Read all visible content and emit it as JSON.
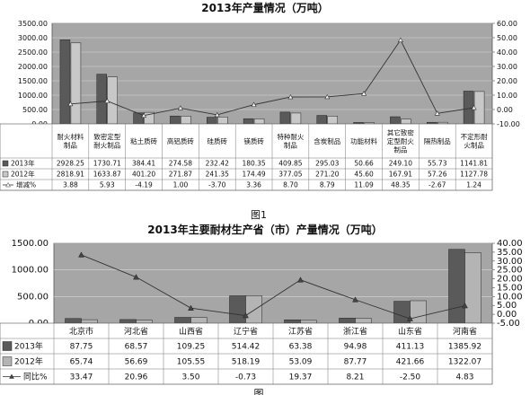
{
  "chart_data": [
    {
      "type": "bar",
      "title": "2013年产量情况（万吨）",
      "figure_label": "图1",
      "categories": [
        "耐火材料制品",
        "致密定型耐火制品",
        "粘土质砖",
        "高铝质砖",
        "硅质砖",
        "镁质砖",
        "特种耐火制品",
        "含炭制品",
        "功能材料",
        "其它致密定型耐火制品",
        "隔热制品",
        "不定形耐火制品"
      ],
      "series": [
        {
          "name": "2013年",
          "values": [
            2928.25,
            1730.71,
            384.41,
            274.58,
            232.42,
            180.35,
            409.85,
            295.03,
            50.66,
            249.1,
            55.73,
            1141.81
          ],
          "labels": [
            "2928.25",
            "1730.71",
            "384.41",
            "274.58",
            "232.42",
            "180.35",
            "409.85",
            "295.03",
            "50.66",
            "249.10",
            "55.73",
            "1141.81"
          ],
          "color": "#5a5a5a"
        },
        {
          "name": "2012年",
          "values": [
            2818.91,
            1633.87,
            401.2,
            271.87,
            241.35,
            174.49,
            377.05,
            271.2,
            45.6,
            167.91,
            57.26,
            1127.78
          ],
          "labels": [
            "2818.91",
            "1633.87",
            "401.20",
            "271.87",
            "241.35",
            "174.49",
            "377.05",
            "271.20",
            "45.60",
            "167.91",
            "57.26",
            "1127.78"
          ],
          "color": "#c8c8c8"
        },
        {
          "name": "增减%",
          "type": "line",
          "axis": "right",
          "values": [
            3.88,
            5.93,
            -4.19,
            1.0,
            -3.7,
            3.36,
            8.7,
            8.79,
            11.09,
            48.35,
            -2.67,
            1.24
          ],
          "labels": [
            "3.88",
            "5.93",
            "-4.19",
            "1.00",
            "-3.70",
            "3.36",
            "8.70",
            "8.79",
            "11.09",
            "48.35",
            "-2.67",
            "1.24"
          ]
        }
      ],
      "y_left": {
        "min": 0,
        "max": 3500,
        "ticks": [
          "0.00",
          "500.00",
          "1000.00",
          "1500.00",
          "2000.00",
          "2500.00",
          "3000.00",
          "3500.00"
        ]
      },
      "y_right": {
        "min": -10,
        "max": 60,
        "ticks": [
          "-10.00",
          "0.00",
          "10.00",
          "20.00",
          "30.00",
          "40.00",
          "50.00",
          "60.00"
        ]
      }
    },
    {
      "type": "bar",
      "title": "2013年主要耐材生产省（市）产量情况（万吨）",
      "figure_label": "图",
      "categories": [
        "北京市",
        "河北省",
        "山西省",
        "辽宁省",
        "江苏省",
        "浙江省",
        "山东省",
        "河南省"
      ],
      "series": [
        {
          "name": "2013年",
          "values": [
            87.75,
            68.57,
            109.25,
            514.42,
            63.38,
            94.98,
            411.13,
            1385.92
          ],
          "labels": [
            "87.75",
            "68.57",
            "109.25",
            "514.42",
            "63.38",
            "94.98",
            "411.13",
            "1385.92"
          ],
          "color": "#5a5a5a"
        },
        {
          "name": "2012年",
          "values": [
            65.74,
            56.69,
            105.55,
            518.19,
            53.09,
            87.77,
            421.66,
            1322.07
          ],
          "labels": [
            "65.74",
            "56.69",
            "105.55",
            "518.19",
            "53.09",
            "87.77",
            "421.66",
            "1322.07"
          ],
          "color": "#b4b4b4"
        },
        {
          "name": "同比%",
          "type": "line",
          "axis": "right",
          "values": [
            33.47,
            20.96,
            3.5,
            -0.73,
            19.37,
            8.21,
            -2.5,
            4.83
          ],
          "labels": [
            "33.47",
            "20.96",
            "3.50",
            "-0.73",
            "19.37",
            "8.21",
            "-2.50",
            "4.83"
          ]
        }
      ],
      "y_left": {
        "min": 0,
        "max": 1500,
        "ticks": [
          "0.00",
          "500.00",
          "1000.00",
          "1500.00"
        ]
      },
      "y_right": {
        "min": -5,
        "max": 40,
        "ticks": [
          "-5.00",
          "0.00",
          "5.00",
          "10.00",
          "15.00",
          "20.00",
          "25.00",
          "30.00",
          "35.00",
          "40.00"
        ]
      }
    }
  ]
}
